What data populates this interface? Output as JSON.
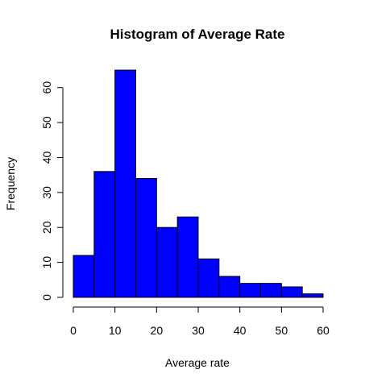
{
  "chart_data": {
    "type": "bar",
    "title": "Histogram of Average Rate",
    "xlabel": "Average rate",
    "ylabel": "Frequency",
    "bin_edges": [
      0,
      5,
      10,
      15,
      20,
      25,
      30,
      35,
      40,
      45,
      50,
      55,
      60
    ],
    "values": [
      12,
      36,
      65,
      34,
      20,
      23,
      11,
      6,
      4,
      4,
      3,
      1
    ],
    "xlim": [
      0,
      60
    ],
    "ylim": [
      0,
      65
    ],
    "x_ticks": [
      0,
      10,
      20,
      30,
      40,
      50,
      60
    ],
    "y_ticks": [
      0,
      10,
      20,
      30,
      40,
      50,
      60
    ],
    "bar_color": "#0000ff",
    "grid": false,
    "legend": "none"
  }
}
